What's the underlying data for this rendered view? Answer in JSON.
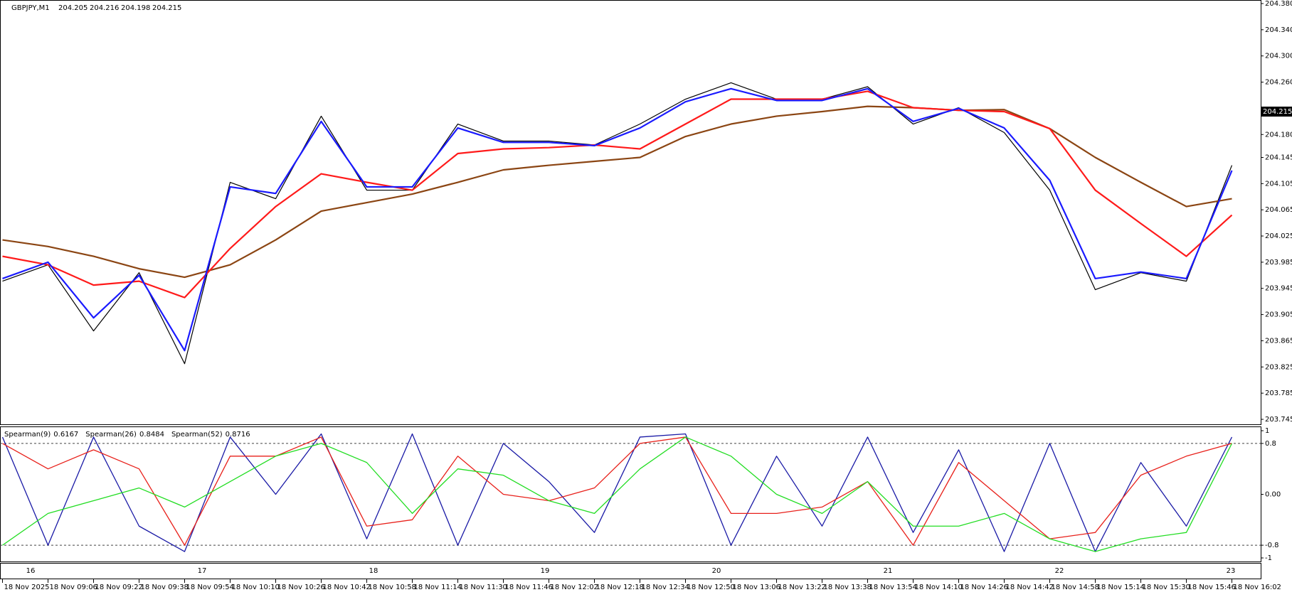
{
  "header": {
    "symbol": "GBPJPY,M1",
    "ohlc": [
      204.205,
      204.216,
      204.198,
      204.215
    ]
  },
  "time_labels": [
    "18 Nov 2025",
    "18 Nov 09:06",
    "18 Nov 09:22",
    "18 Nov 09:38",
    "18 Nov 09:54",
    "18 Nov 10:10",
    "18 Nov 10:26",
    "18 Nov 10:42",
    "18 Nov 10:58",
    "18 Nov 11:14",
    "18 Nov 11:30",
    "18 Nov 11:46",
    "18 Nov 12:02",
    "18 Nov 12:18",
    "18 Nov 12:34",
    "18 Nov 12:50",
    "18 Nov 13:06",
    "18 Nov 13:22",
    "18 Nov 13:38",
    "18 Nov 13:54",
    "18 Nov 14:10",
    "18 Nov 14:26",
    "18 Nov 14:42",
    "18 Nov 14:58",
    "18 Nov 15:14",
    "18 Nov 15:30",
    "18 Nov 15:46",
    "18 Nov 16:02"
  ],
  "index_labels": [
    "16",
    "17",
    "18",
    "19",
    "20",
    "21",
    "22",
    "23"
  ],
  "chart_data": [
    {
      "type": "line",
      "last_price": 204.215,
      "ylim": [
        203.745,
        204.38
      ],
      "yticks": [
        203.745,
        203.785,
        203.825,
        203.865,
        203.905,
        203.945,
        203.985,
        204.025,
        204.065,
        204.105,
        204.145,
        {
          "value": 204.18,
          "label": "204.180"
        },
        {
          "value": 204.26,
          "label": "204.260"
        },
        {
          "value": 204.3,
          "label": "204.300"
        },
        {
          "value": 204.34,
          "label": "204.340"
        },
        {
          "value": 204.38,
          "label": "204.380"
        }
      ],
      "series": [
        {
          "color": "#000000",
          "width": 1.2,
          "values": [
            203.956,
            203.981,
            203.88,
            203.969,
            203.83,
            204.107,
            204.082,
            204.208,
            204.095,
            204.095,
            204.196,
            204.17,
            204.17,
            204.164,
            204.196,
            204.234,
            204.259,
            204.234,
            204.234,
            204.253,
            204.196,
            204.221,
            204.183,
            204.095,
            203.943,
            203.969,
            203.956,
            204.133
          ]
        },
        {
          "color": "#8b4513",
          "width": 2.2,
          "values": [
            204.019,
            204.009,
            203.994,
            203.975,
            203.962,
            203.981,
            204.019,
            204.063,
            204.076,
            204.089,
            204.107,
            204.126,
            204.133,
            204.139,
            204.145,
            204.177,
            204.196,
            204.208,
            204.215,
            204.223,
            204.221,
            204.217,
            204.218,
            204.189,
            204.145,
            204.107,
            204.07,
            204.082
          ]
        },
        {
          "color": "#ff1a1a",
          "width": 2.2,
          "values": [
            203.994,
            203.981,
            203.95,
            203.956,
            203.931,
            204.006,
            204.07,
            204.12,
            204.107,
            204.095,
            204.151,
            204.158,
            204.16,
            204.164,
            204.158,
            204.196,
            204.234,
            204.234,
            204.234,
            204.246,
            204.221,
            204.217,
            204.215,
            204.189,
            204.095,
            204.044,
            203.994,
            204.057
          ]
        },
        {
          "color": "#1a1aff",
          "width": 2.2,
          "values": [
            203.96,
            203.985,
            203.9,
            203.965,
            203.85,
            204.1,
            204.09,
            204.2,
            204.1,
            204.1,
            204.19,
            204.168,
            204.168,
            204.163,
            204.19,
            204.23,
            204.25,
            204.232,
            204.232,
            204.25,
            204.2,
            204.22,
            204.19,
            204.11,
            203.96,
            203.97,
            203.96,
            204.125
          ]
        }
      ]
    },
    {
      "type": "line",
      "ylim": [
        -1,
        1
      ],
      "yticks": [
        -1,
        -0.8,
        {
          "value": 0,
          "label": "0.00"
        },
        0.8,
        1
      ],
      "levels": [
        0.8,
        -0.8
      ],
      "series": [
        {
          "name": "Spearman(9)",
          "last": 0.6167,
          "color": "#1a1aa6",
          "values": [
            0.9,
            -0.8,
            0.9,
            -0.5,
            -0.9,
            0.9,
            0.0,
            0.95,
            -0.7,
            0.95,
            -0.8,
            0.8,
            0.2,
            -0.6,
            0.9,
            0.95,
            -0.8,
            0.6,
            -0.5,
            0.9,
            -0.6,
            0.7,
            -0.9,
            0.8,
            -0.9,
            0.5,
            -0.5,
            0.9
          ]
        },
        {
          "name": "Spearman(26)",
          "last": 0.8484,
          "color": "#e8201a",
          "values": [
            0.8,
            0.4,
            0.7,
            0.4,
            -0.8,
            0.6,
            0.6,
            0.9,
            -0.5,
            -0.4,
            0.6,
            0.0,
            -0.1,
            0.1,
            0.8,
            0.9,
            -0.3,
            -0.3,
            -0.2,
            0.2,
            -0.8,
            0.5,
            -0.1,
            -0.7,
            -0.6,
            0.3,
            0.6,
            0.8
          ]
        },
        {
          "name": "Spearman(52)",
          "last": 0.8716,
          "color": "#22dd22",
          "values": [
            -0.8,
            -0.3,
            -0.1,
            0.1,
            -0.2,
            0.2,
            0.6,
            0.8,
            0.5,
            -0.3,
            0.4,
            0.3,
            -0.1,
            -0.3,
            0.4,
            0.9,
            0.6,
            0.0,
            -0.3,
            0.2,
            -0.5,
            -0.5,
            -0.3,
            -0.7,
            -0.9,
            -0.7,
            -0.6,
            0.8
          ]
        }
      ]
    }
  ]
}
